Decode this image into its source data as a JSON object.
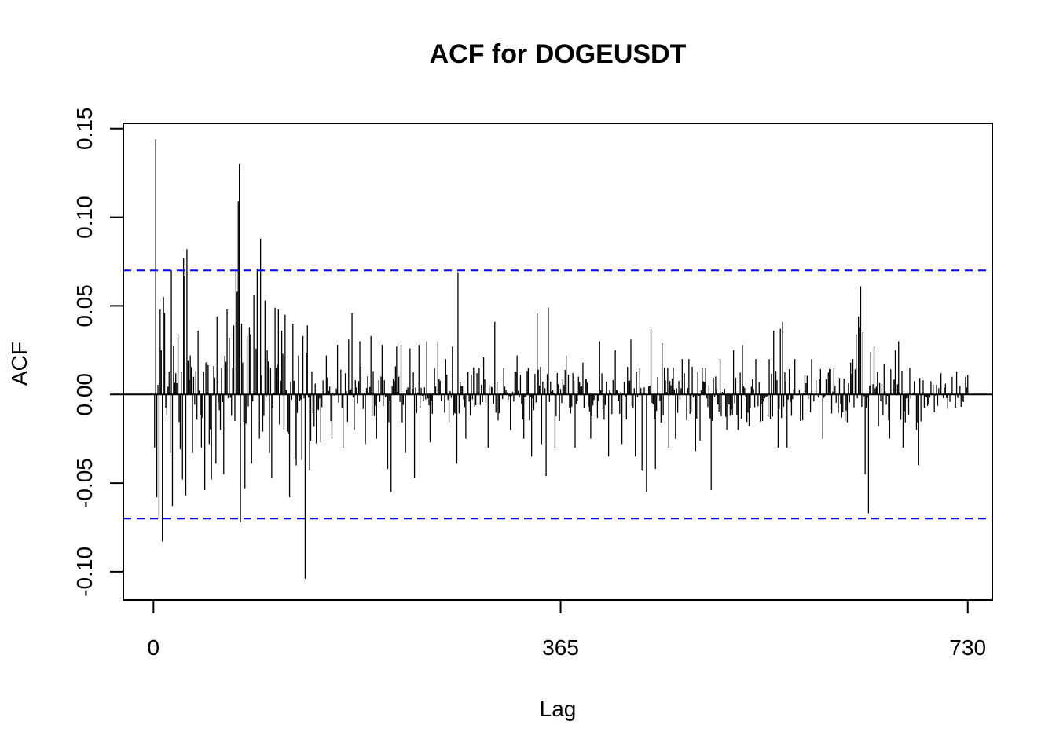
{
  "chart_data": {
    "type": "bar",
    "title": "ACF for DOGEUSDT",
    "xlabel": "Lag",
    "ylabel": "ACF",
    "xlim": [
      -27,
      752
    ],
    "ylim": [
      -0.116,
      0.153
    ],
    "x_ticks": [
      0,
      365,
      730
    ],
    "x_tick_labels": [
      "0",
      "365",
      "730"
    ],
    "y_ticks": [
      -0.1,
      -0.05,
      0.0,
      0.05,
      0.1,
      0.15
    ],
    "y_tick_labels": [
      "-0.10",
      "-0.05",
      "0.00",
      "0.05",
      "0.10",
      "0.15"
    ],
    "confidence_bound": 0.07,
    "confidence_color": "#0000ff",
    "bar_color": "#000000",
    "zero_line": true,
    "grid": false,
    "max_lag": 730,
    "key_lags": [
      {
        "lag": 1,
        "value": -0.03
      },
      {
        "lag": 2,
        "value": 0.144
      },
      {
        "lag": 3,
        "value": -0.058
      },
      {
        "lag": 5,
        "value": -0.07
      },
      {
        "lag": 6,
        "value": 0.048
      },
      {
        "lag": 7,
        "value": 0.025
      },
      {
        "lag": 8,
        "value": -0.083
      },
      {
        "lag": 9,
        "value": 0.055
      },
      {
        "lag": 10,
        "value": 0.046
      },
      {
        "lag": 12,
        "value": -0.012
      },
      {
        "lag": 14,
        "value": 0.013
      },
      {
        "lag": 15,
        "value": -0.033
      },
      {
        "lag": 16,
        "value": 0.07
      },
      {
        "lag": 17,
        "value": -0.063
      },
      {
        "lag": 20,
        "value": 0.012
      },
      {
        "lag": 22,
        "value": 0.034
      },
      {
        "lag": 24,
        "value": -0.031
      },
      {
        "lag": 25,
        "value": 0.013
      },
      {
        "lag": 26,
        "value": -0.048
      },
      {
        "lag": 27,
        "value": 0.077
      },
      {
        "lag": 28,
        "value": 0.067
      },
      {
        "lag": 29,
        "value": -0.057
      },
      {
        "lag": 30,
        "value": 0.082
      },
      {
        "lag": 33,
        "value": 0.022
      },
      {
        "lag": 35,
        "value": -0.033
      },
      {
        "lag": 40,
        "value": 0.036
      },
      {
        "lag": 43,
        "value": -0.03
      },
      {
        "lag": 46,
        "value": -0.054
      },
      {
        "lag": 47,
        "value": 0.018
      },
      {
        "lag": 50,
        "value": -0.028
      },
      {
        "lag": 52,
        "value": -0.048
      },
      {
        "lag": 54,
        "value": 0.016
      },
      {
        "lag": 56,
        "value": -0.039
      },
      {
        "lag": 57,
        "value": 0.044
      },
      {
        "lag": 60,
        "value": -0.02
      },
      {
        "lag": 61,
        "value": 0.015
      },
      {
        "lag": 63,
        "value": -0.045
      },
      {
        "lag": 66,
        "value": 0.048
      },
      {
        "lag": 68,
        "value": 0.032
      },
      {
        "lag": 70,
        "value": -0.012
      },
      {
        "lag": 72,
        "value": 0.039
      },
      {
        "lag": 73,
        "value": -0.015
      },
      {
        "lag": 74,
        "value": 0.07
      },
      {
        "lag": 75,
        "value": 0.058
      },
      {
        "lag": 76,
        "value": 0.109
      },
      {
        "lag": 77,
        "value": 0.13
      },
      {
        "lag": 78,
        "value": -0.072
      },
      {
        "lag": 79,
        "value": 0.04
      },
      {
        "lag": 80,
        "value": 0.018
      },
      {
        "lag": 82,
        "value": -0.053
      },
      {
        "lag": 84,
        "value": 0.033
      },
      {
        "lag": 86,
        "value": 0.038
      },
      {
        "lag": 87,
        "value": 0.034
      },
      {
        "lag": 88,
        "value": -0.039
      },
      {
        "lag": 90,
        "value": 0.056
      },
      {
        "lag": 93,
        "value": 0.071
      },
      {
        "lag": 95,
        "value": -0.025
      },
      {
        "lag": 96,
        "value": 0.088
      },
      {
        "lag": 98,
        "value": -0.021
      },
      {
        "lag": 100,
        "value": 0.053
      },
      {
        "lag": 102,
        "value": 0.025
      },
      {
        "lag": 104,
        "value": -0.033
      },
      {
        "lag": 106,
        "value": -0.047
      },
      {
        "lag": 109,
        "value": 0.049
      },
      {
        "lag": 110,
        "value": 0.015
      },
      {
        "lag": 112,
        "value": 0.048
      },
      {
        "lag": 113,
        "value": -0.017
      },
      {
        "lag": 115,
        "value": 0.036
      },
      {
        "lag": 116,
        "value": 0.023
      },
      {
        "lag": 118,
        "value": 0.045
      },
      {
        "lag": 121,
        "value": -0.022
      },
      {
        "lag": 122,
        "value": -0.058
      },
      {
        "lag": 125,
        "value": 0.04
      },
      {
        "lag": 127,
        "value": -0.036
      },
      {
        "lag": 128,
        "value": -0.04
      },
      {
        "lag": 130,
        "value": 0.022
      },
      {
        "lag": 133,
        "value": -0.037
      },
      {
        "lag": 134,
        "value": 0.033
      },
      {
        "lag": 136,
        "value": -0.104
      },
      {
        "lag": 138,
        "value": 0.039
      },
      {
        "lag": 140,
        "value": -0.043
      },
      {
        "lag": 142,
        "value": 0.013
      },
      {
        "lag": 150,
        "value": -0.027
      },
      {
        "lag": 155,
        "value": 0.022
      },
      {
        "lag": 160,
        "value": -0.025
      },
      {
        "lag": 165,
        "value": 0.028
      },
      {
        "lag": 170,
        "value": -0.03
      },
      {
        "lag": 175,
        "value": 0.031
      },
      {
        "lag": 178,
        "value": 0.046
      },
      {
        "lag": 180,
        "value": -0.02
      },
      {
        "lag": 185,
        "value": 0.03
      },
      {
        "lag": 190,
        "value": -0.028
      },
      {
        "lag": 195,
        "value": 0.033
      },
      {
        "lag": 200,
        "value": -0.025
      },
      {
        "lag": 205,
        "value": 0.028
      },
      {
        "lag": 210,
        "value": -0.042
      },
      {
        "lag": 213,
        "value": -0.055
      },
      {
        "lag": 218,
        "value": 0.027
      },
      {
        "lag": 222,
        "value": 0.028
      },
      {
        "lag": 226,
        "value": -0.033
      },
      {
        "lag": 230,
        "value": 0.026
      },
      {
        "lag": 234,
        "value": -0.047
      },
      {
        "lag": 238,
        "value": 0.028
      },
      {
        "lag": 245,
        "value": 0.03
      },
      {
        "lag": 248,
        "value": -0.027
      },
      {
        "lag": 255,
        "value": 0.03
      },
      {
        "lag": 262,
        "value": 0.02
      },
      {
        "lag": 268,
        "value": 0.027
      },
      {
        "lag": 272,
        "value": -0.039
      },
      {
        "lag": 273,
        "value": 0.069
      },
      {
        "lag": 280,
        "value": -0.025
      },
      {
        "lag": 290,
        "value": 0.012
      },
      {
        "lag": 296,
        "value": 0.021
      },
      {
        "lag": 300,
        "value": -0.03
      },
      {
        "lag": 306,
        "value": 0.041
      },
      {
        "lag": 314,
        "value": 0.015
      },
      {
        "lag": 320,
        "value": -0.02
      },
      {
        "lag": 326,
        "value": 0.022
      },
      {
        "lag": 332,
        "value": -0.025
      },
      {
        "lag": 339,
        "value": -0.035
      },
      {
        "lag": 344,
        "value": 0.046
      },
      {
        "lag": 348,
        "value": -0.028
      },
      {
        "lag": 352,
        "value": -0.046
      },
      {
        "lag": 354,
        "value": 0.049
      },
      {
        "lag": 360,
        "value": -0.03
      },
      {
        "lag": 370,
        "value": 0.022
      },
      {
        "lag": 378,
        "value": -0.03
      },
      {
        "lag": 385,
        "value": 0.018
      },
      {
        "lag": 392,
        "value": -0.025
      },
      {
        "lag": 400,
        "value": 0.03
      },
      {
        "lag": 408,
        "value": -0.035
      },
      {
        "lag": 414,
        "value": 0.025
      },
      {
        "lag": 420,
        "value": -0.028
      },
      {
        "lag": 428,
        "value": 0.031
      },
      {
        "lag": 432,
        "value": -0.035
      },
      {
        "lag": 438,
        "value": -0.043
      },
      {
        "lag": 442,
        "value": -0.055
      },
      {
        "lag": 446,
        "value": 0.037
      },
      {
        "lag": 450,
        "value": -0.042
      },
      {
        "lag": 456,
        "value": 0.029
      },
      {
        "lag": 462,
        "value": -0.03
      },
      {
        "lag": 468,
        "value": -0.025
      },
      {
        "lag": 474,
        "value": 0.02
      },
      {
        "lag": 480,
        "value": 0.02
      },
      {
        "lag": 486,
        "value": -0.032
      },
      {
        "lag": 490,
        "value": -0.026
      },
      {
        "lag": 495,
        "value": 0.015
      },
      {
        "lag": 500,
        "value": -0.054
      },
      {
        "lag": 508,
        "value": 0.02
      },
      {
        "lag": 514,
        "value": -0.02
      },
      {
        "lag": 520,
        "value": 0.025
      },
      {
        "lag": 524,
        "value": -0.02
      },
      {
        "lag": 528,
        "value": 0.028
      },
      {
        "lag": 534,
        "value": -0.018
      },
      {
        "lag": 540,
        "value": 0.02
      },
      {
        "lag": 546,
        "value": -0.015
      },
      {
        "lag": 552,
        "value": 0.02
      },
      {
        "lag": 556,
        "value": 0.036
      },
      {
        "lag": 560,
        "value": -0.03
      },
      {
        "lag": 562,
        "value": 0.037
      },
      {
        "lag": 564,
        "value": 0.041
      },
      {
        "lag": 568,
        "value": -0.03
      },
      {
        "lag": 575,
        "value": 0.02
      },
      {
        "lag": 580,
        "value": -0.015
      },
      {
        "lag": 590,
        "value": 0.02
      },
      {
        "lag": 600,
        "value": -0.025
      },
      {
        "lag": 610,
        "value": 0.015
      },
      {
        "lag": 620,
        "value": -0.015
      },
      {
        "lag": 625,
        "value": 0.018
      },
      {
        "lag": 627,
        "value": 0.02
      },
      {
        "lag": 630,
        "value": 0.034
      },
      {
        "lag": 632,
        "value": 0.044
      },
      {
        "lag": 633,
        "value": 0.038
      },
      {
        "lag": 634,
        "value": 0.061
      },
      {
        "lag": 636,
        "value": 0.035
      },
      {
        "lag": 638,
        "value": -0.045
      },
      {
        "lag": 641,
        "value": -0.067
      },
      {
        "lag": 643,
        "value": 0.024
      },
      {
        "lag": 646,
        "value": 0.027
      },
      {
        "lag": 650,
        "value": -0.018
      },
      {
        "lag": 655,
        "value": 0.017
      },
      {
        "lag": 660,
        "value": -0.025
      },
      {
        "lag": 665,
        "value": 0.025
      },
      {
        "lag": 668,
        "value": 0.03
      },
      {
        "lag": 672,
        "value": -0.03
      },
      {
        "lag": 678,
        "value": 0.015
      },
      {
        "lag": 684,
        "value": -0.02
      },
      {
        "lag": 686,
        "value": -0.04
      },
      {
        "lag": 690,
        "value": 0.008
      },
      {
        "lag": 700,
        "value": -0.01
      },
      {
        "lag": 706,
        "value": 0.012
      },
      {
        "lag": 712,
        "value": -0.008
      },
      {
        "lag": 716,
        "value": 0.01
      },
      {
        "lag": 720,
        "value": 0.013
      },
      {
        "lag": 724,
        "value": -0.007
      },
      {
        "lag": 728,
        "value": 0.01
      },
      {
        "lag": 730,
        "value": 0.011
      }
    ]
  }
}
